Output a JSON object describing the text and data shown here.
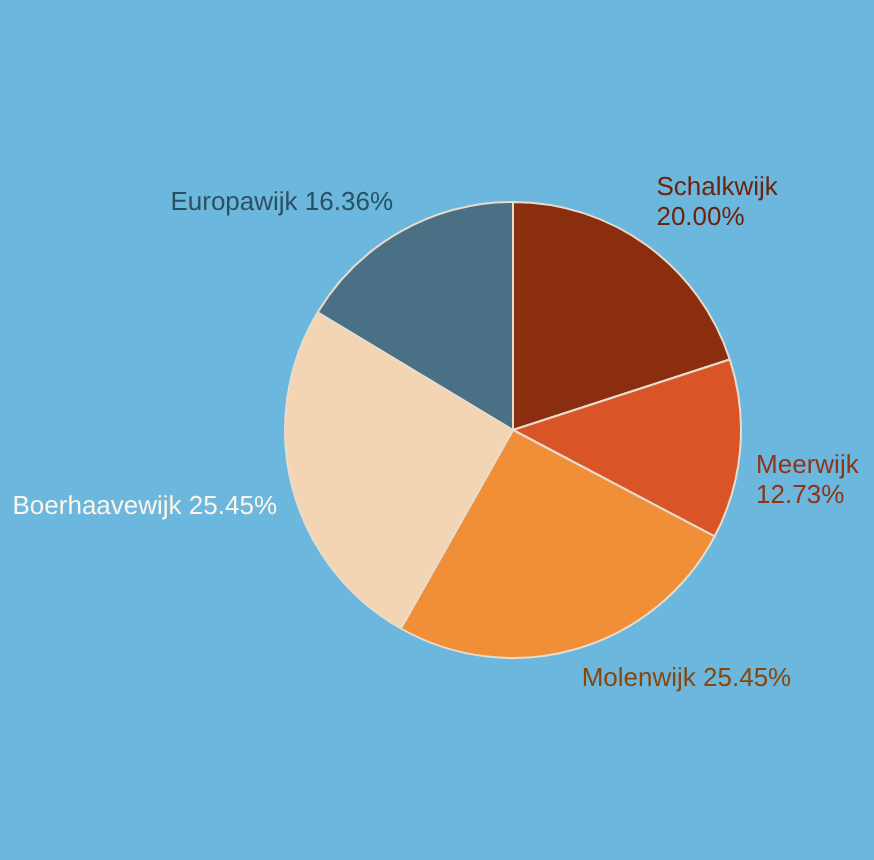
{
  "chart_data": {
    "type": "pie",
    "categories": [
      "Schalkwijk",
      "Meerwijk",
      "Molenwijk",
      "Boerhaavewijk",
      "Europawijk"
    ],
    "values": [
      20.0,
      12.73,
      25.45,
      25.45,
      16.36
    ],
    "colors": [
      "#8b2e10",
      "#d95527",
      "#f18f38",
      "#f3d5b4",
      "#4a7085"
    ],
    "value_labels": [
      "20.00%",
      "12.73%",
      "25.45%",
      "25.45%",
      "16.36%"
    ],
    "legend": false
  }
}
